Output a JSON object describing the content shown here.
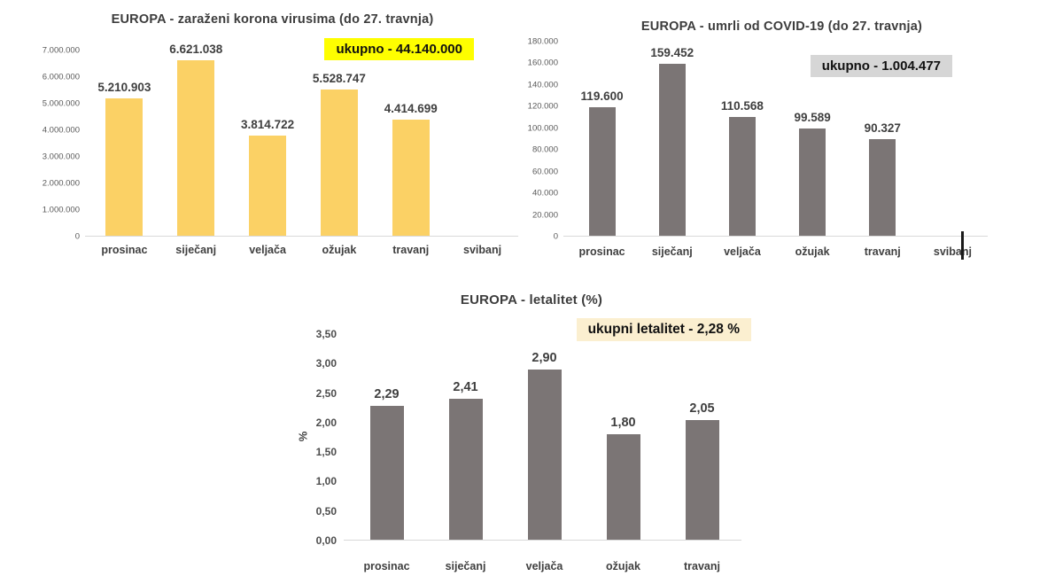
{
  "page": {
    "background": "#ffffff"
  },
  "chart_data": [
    {
      "type": "bar",
      "title": "EUROPA - zaraženi korona virusima (do 27. travnja)",
      "badge": {
        "text": "ukupno - 44.140.000",
        "bg": "#fefe00"
      },
      "bar_color": "#fbd165",
      "categories": [
        "prosinac",
        "siječanj",
        "veljača",
        "ožujak",
        "travanj",
        "svibanj"
      ],
      "values": [
        5210903,
        6621038,
        3814722,
        5528747,
        4414699,
        null
      ],
      "value_labels": [
        "5.210.903",
        "6.621.038",
        "3.814.722",
        "5.528.747",
        "4.414.699",
        ""
      ],
      "y_ticks": [
        "7.000.000",
        "6.000.000",
        "5.000.000",
        "4.000.000",
        "3.000.000",
        "2.000.000",
        "1.000.000",
        "0"
      ],
      "axis_max": 7000000,
      "xlabel": "",
      "ylabel": "",
      "ylim": [
        0,
        7000000
      ],
      "grid": false,
      "legend": "none"
    },
    {
      "type": "bar",
      "title": "EUROPA - umrli od COVID-19 (do 27. travnja)",
      "badge": {
        "text": "ukupno - 1.004.477",
        "bg": "#d6d6d6"
      },
      "bar_color": "#7b7575",
      "categories": [
        "prosinac",
        "siječanj",
        "veljača",
        "ožujak",
        "travanj",
        "svibanj"
      ],
      "values": [
        119600,
        159452,
        110568,
        99589,
        90327,
        null
      ],
      "value_labels": [
        "119.600",
        "159.452",
        "110.568",
        "99.589",
        "90.327",
        ""
      ],
      "y_ticks": [
        "180.000",
        "160.000",
        "140.000",
        "120.000",
        "100.000",
        "80.000",
        "60.000",
        "40.000",
        "20.000",
        "0"
      ],
      "axis_max": 180000,
      "xlabel": "",
      "ylabel": "",
      "ylim": [
        0,
        180000
      ],
      "grid": false,
      "legend": "none"
    },
    {
      "type": "bar",
      "title": "EUROPA - letalitet (%)",
      "badge": {
        "text": "ukupni letalitet - 2,28 %",
        "bg": "#fbefd0"
      },
      "bar_color": "#7b7575",
      "categories": [
        "prosinac",
        "siječanj",
        "veljača",
        "ožujak",
        "travanj"
      ],
      "values": [
        2.29,
        2.41,
        2.9,
        1.8,
        2.05
      ],
      "value_labels": [
        "2,29",
        "2,41",
        "2,90",
        "1,80",
        "2,05"
      ],
      "y_ticks": [
        "3,50",
        "3,00",
        "2,50",
        "2,00",
        "1,50",
        "1,00",
        "0,50",
        "0,00"
      ],
      "axis_max": 3.5,
      "xlabel": "",
      "ylabel": "%",
      "ylim": [
        0,
        3.5
      ],
      "grid": false,
      "legend": "none"
    }
  ]
}
